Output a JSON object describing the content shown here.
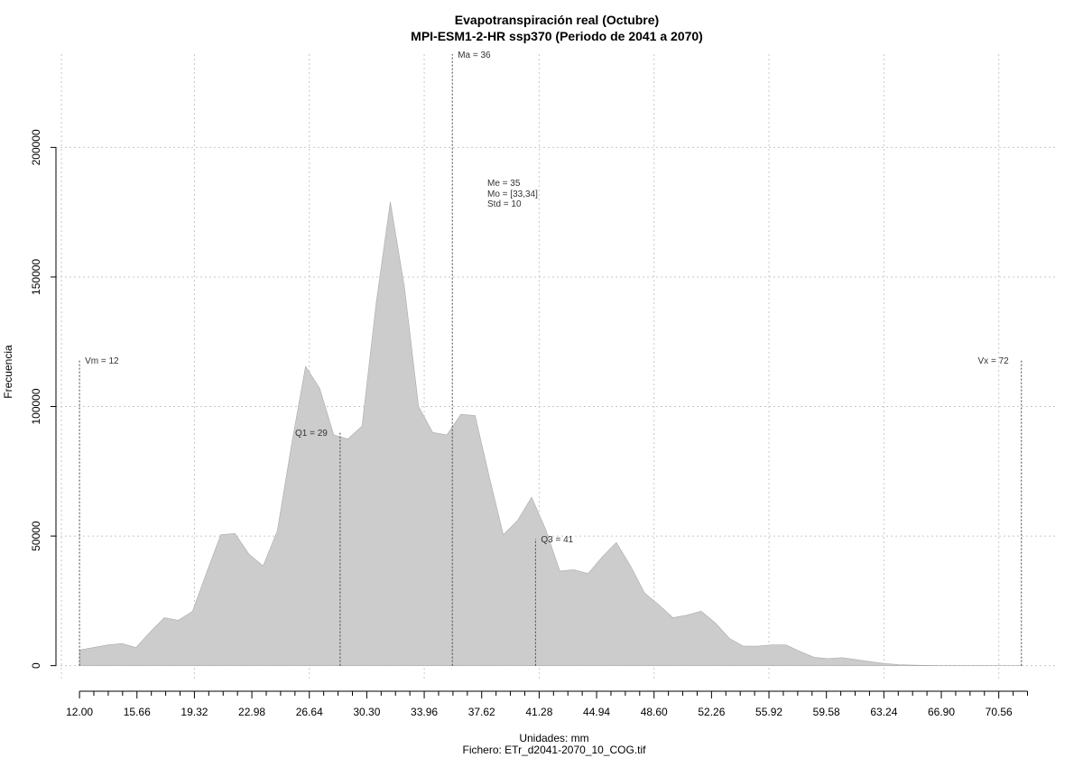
{
  "chart_data": {
    "type": "area",
    "title": "Evapotranspiración real (Octubre)",
    "subtitle": "MPI-ESM1-2-HR ssp370 (Periodo de 2041 a 2070)",
    "xlabel": "Unidades: mm",
    "xlabel2": "Fichero: ETr_d2041-2070_10_COG.tif",
    "ylabel": "Frecuencia",
    "xlim": [
      10.5,
      74.2
    ],
    "ylim": [
      -5000,
      236000
    ],
    "grid": true,
    "fill_color": "#cccccc",
    "x_ticks_labeled": [
      "12.00",
      "15.66",
      "19.32",
      "22.98",
      "26.64",
      "30.30",
      "33.96",
      "37.62",
      "41.28",
      "44.94",
      "48.60",
      "52.26",
      "55.92",
      "59.58",
      "63.24",
      "66.90",
      "70.56"
    ],
    "x_ticks_minor": [
      12.0,
      12.915,
      13.83,
      14.745,
      15.66,
      16.575,
      17.49,
      18.405,
      19.32,
      20.235,
      21.15,
      22.065,
      22.98,
      23.895,
      24.81,
      25.725,
      26.64,
      27.555,
      28.47,
      29.385,
      30.3,
      31.215,
      32.13,
      33.045,
      33.96,
      34.875,
      35.79,
      36.705,
      37.62,
      38.535,
      39.45,
      40.365,
      41.28,
      42.195,
      43.11,
      44.025,
      44.94,
      45.855,
      46.77,
      47.685,
      48.6,
      49.515,
      50.43,
      51.345,
      52.26,
      53.175,
      54.09,
      55.005,
      55.92,
      56.835,
      57.75,
      58.665,
      59.58,
      60.495,
      61.41,
      62.325,
      63.24,
      64.155,
      65.07,
      65.985,
      66.9,
      67.815,
      68.73,
      69.645,
      70.56,
      71.475,
      72.39
    ],
    "y_ticks": [
      "0",
      "50000",
      "100000",
      "150000",
      "200000"
    ],
    "y_tick_values": [
      0,
      50000,
      100000,
      150000,
      200000
    ],
    "x": [
      12.0,
      12.9,
      13.8,
      14.7,
      15.6,
      16.5,
      17.4,
      18.3,
      19.2,
      20.1,
      21.0,
      21.9,
      22.8,
      23.7,
      24.6,
      25.5,
      26.4,
      27.3,
      28.2,
      29.1,
      30.0,
      30.9,
      31.8,
      32.7,
      33.6,
      34.5,
      35.4,
      36.3,
      37.2,
      38.1,
      39.0,
      39.9,
      40.8,
      41.7,
      42.6,
      43.5,
      44.4,
      45.3,
      46.2,
      47.1,
      48.0,
      48.9,
      49.8,
      50.7,
      51.6,
      52.5,
      53.4,
      54.3,
      55.2,
      56.1,
      57.0,
      57.9,
      58.8,
      59.7,
      60.6,
      61.5,
      62.4,
      63.3,
      64.2,
      65.1,
      66.0,
      66.9,
      67.8,
      68.7,
      69.6,
      70.5,
      71.4,
      72.0
    ],
    "y": [
      6000,
      7000,
      8000,
      8500,
      7000,
      13000,
      18500,
      17500,
      21000,
      36000,
      50500,
      51000,
      43000,
      38500,
      52000,
      85000,
      115500,
      107000,
      89000,
      87500,
      92500,
      140000,
      179000,
      146000,
      100000,
      90000,
      89000,
      97000,
      96500,
      73000,
      50500,
      56000,
      65000,
      52500,
      36500,
      37000,
      35500,
      42000,
      47500,
      38500,
      28000,
      23500,
      18500,
      19500,
      21000,
      16500,
      10500,
      7500,
      7500,
      8000,
      8000,
      5500,
      3200,
      2700,
      3100,
      2300,
      1500,
      800,
      400,
      200,
      100,
      50,
      30,
      20,
      10,
      5,
      2,
      0
    ],
    "annotations": [
      {
        "name": "vm-marker",
        "label": "Vm = 12",
        "x": 12.0,
        "y_top": 118000,
        "label_side": "right"
      },
      {
        "name": "q1-marker",
        "label": "Q1 = 29",
        "x": 28.6,
        "y_top": 90000,
        "label_side": "left"
      },
      {
        "name": "ma-marker",
        "label": "Ma = 36",
        "x": 35.75,
        "y_top": 236000,
        "label_side": "right"
      },
      {
        "name": "q3-marker",
        "label": "Q3 = 41",
        "x": 41.05,
        "y_top": 49000,
        "label_side": "right"
      },
      {
        "name": "vx-marker",
        "label": "Vx = 72",
        "x": 72.0,
        "y_top": 118000,
        "label_side": "left"
      }
    ],
    "stats_text": [
      "Me = 35",
      "Mo = [33,34]",
      "Std = 10"
    ]
  }
}
